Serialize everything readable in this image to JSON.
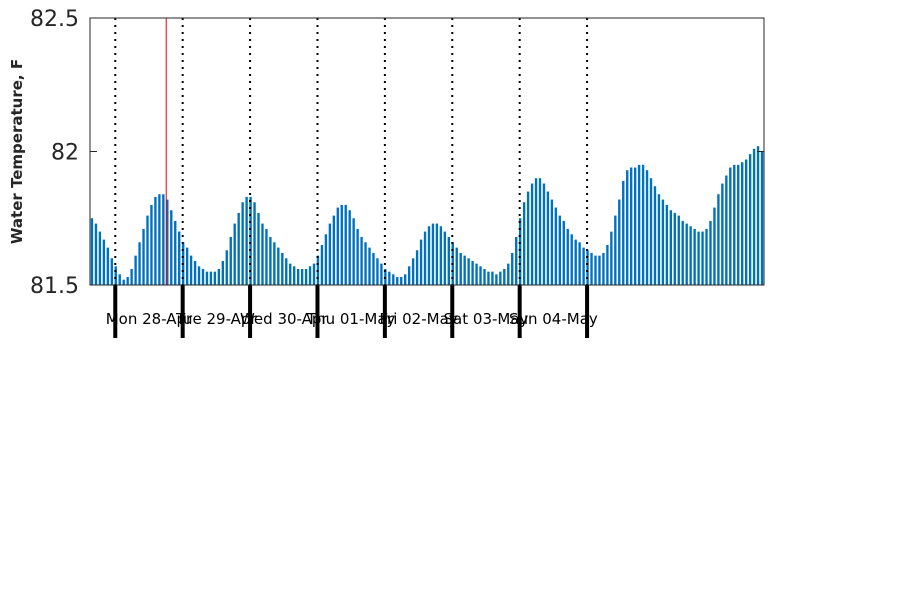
{
  "chart_data": {
    "type": "bar",
    "title": "",
    "xlabel": "",
    "ylabel": "Water Temperature, F",
    "ylim": [
      81.5,
      82.5
    ],
    "yticks": [
      {
        "value": 81.5,
        "label": "81.5"
      },
      {
        "value": 82.0,
        "label": "82"
      },
      {
        "value": 82.5,
        "label": "82.5"
      }
    ],
    "x_unit": "hours since start of record",
    "x_range_hours": [
      0,
      168
    ],
    "grid": false,
    "legend": "none",
    "day_boundaries_hours": [
      6.3,
      23.1,
      39.9,
      56.7,
      73.5,
      90.3,
      107.1,
      123.9
    ],
    "day_labels": [
      "Mon 28-Apr",
      "Tue 29-Apr",
      "Wed 30-Apr",
      "Thu 01-May",
      "Fri 02-May",
      "Sat 03-May",
      "Sun 04-May"
    ],
    "marker_hour": 19.0,
    "colors": {
      "bars": "#0072BD",
      "marker": "#e8000b",
      "day_lines": "#000000",
      "axes": "#262626"
    },
    "series": [
      {
        "values": [
          81.75,
          81.73,
          81.7,
          81.67,
          81.64,
          81.6,
          81.57,
          81.54,
          81.52,
          81.53,
          81.56,
          81.61,
          81.66,
          81.71,
          81.76,
          81.8,
          81.83,
          81.84,
          81.84,
          81.82,
          81.78,
          81.74,
          81.7,
          81.66,
          81.64,
          81.61,
          81.59,
          81.57,
          81.56,
          81.55,
          81.55,
          81.55,
          81.56,
          81.59,
          81.63,
          81.68,
          81.73,
          81.77,
          81.81,
          81.83,
          81.83,
          81.81,
          81.77,
          81.73,
          81.71,
          81.68,
          81.66,
          81.64,
          81.62,
          81.6,
          81.58,
          81.57,
          81.56,
          81.56,
          81.56,
          81.57,
          81.58,
          81.61,
          81.65,
          81.69,
          81.73,
          81.76,
          81.79,
          81.8,
          81.8,
          81.78,
          81.75,
          81.71,
          81.68,
          81.66,
          81.64,
          81.62,
          81.6,
          81.58,
          81.56,
          81.55,
          81.54,
          81.53,
          81.53,
          81.54,
          81.57,
          81.6,
          81.63,
          81.67,
          81.7,
          81.72,
          81.73,
          81.73,
          81.72,
          81.7,
          81.68,
          81.66,
          81.64,
          81.62,
          81.61,
          81.6,
          81.59,
          81.58,
          81.57,
          81.56,
          81.55,
          81.55,
          81.54,
          81.55,
          81.56,
          81.58,
          81.62,
          81.68,
          81.75,
          81.81,
          81.85,
          81.88,
          81.9,
          81.9,
          81.88,
          81.85,
          81.82,
          81.79,
          81.76,
          81.74,
          81.71,
          81.69,
          81.67,
          81.66,
          81.64,
          81.63,
          81.62,
          81.61,
          81.61,
          81.62,
          81.65,
          81.7,
          81.76,
          81.82,
          81.89,
          81.93,
          81.94,
          81.94,
          81.95,
          81.95,
          81.93,
          81.9,
          81.87,
          81.84,
          81.82,
          81.8,
          81.78,
          81.77,
          81.76,
          81.74,
          81.73,
          81.72,
          81.71,
          81.7,
          81.7,
          81.71,
          81.74,
          81.79,
          81.84,
          81.88,
          81.91,
          81.94,
          81.95,
          81.95,
          81.96,
          81.97,
          81.99,
          82.01,
          82.02,
          82.0
        ]
      }
    ]
  }
}
